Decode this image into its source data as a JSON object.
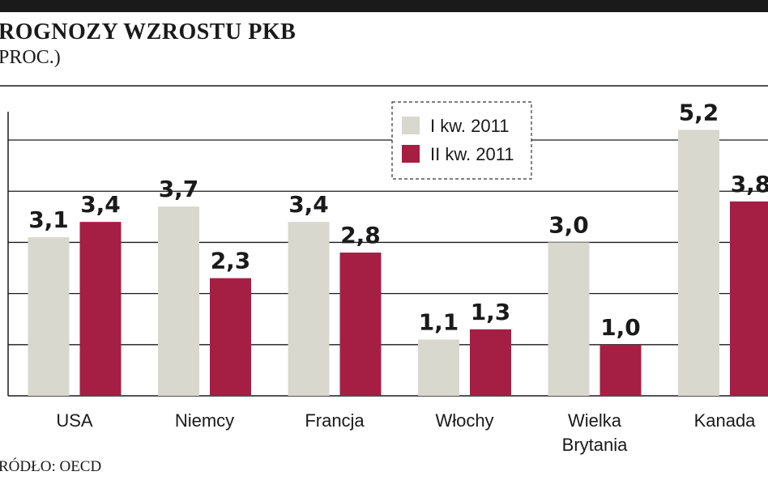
{
  "header": {
    "title": "ROGNOZY WZROSTU PKB",
    "subtitle": "PROC.)"
  },
  "footer": {
    "source": "RÓDŁO: OECD"
  },
  "colors": {
    "series1": "#d8d8cf",
    "series2": "#a51f45",
    "grid": "#1a1a1a"
  },
  "chart_data": {
    "type": "bar",
    "categories": [
      "USA",
      "Niemcy",
      "Francja",
      "Włochy",
      "Wielka Brytania",
      "Kanada"
    ],
    "series": [
      {
        "name": "I kw. 2011",
        "values": [
          3.1,
          3.7,
          3.4,
          1.1,
          3.0,
          5.2
        ],
        "labels": [
          "3,1",
          "3,7",
          "3,4",
          "1,1",
          "3,0",
          "5,2"
        ]
      },
      {
        "name": "II kw. 2011",
        "values": [
          3.4,
          2.3,
          2.8,
          1.3,
          1.0,
          3.8
        ],
        "labels": [
          "3,4",
          "2,3",
          "2,8",
          "1,3",
          "1,0",
          "3,8"
        ]
      }
    ],
    "ylim": [
      0,
      6
    ],
    "grid": true,
    "legend": "top-center"
  }
}
